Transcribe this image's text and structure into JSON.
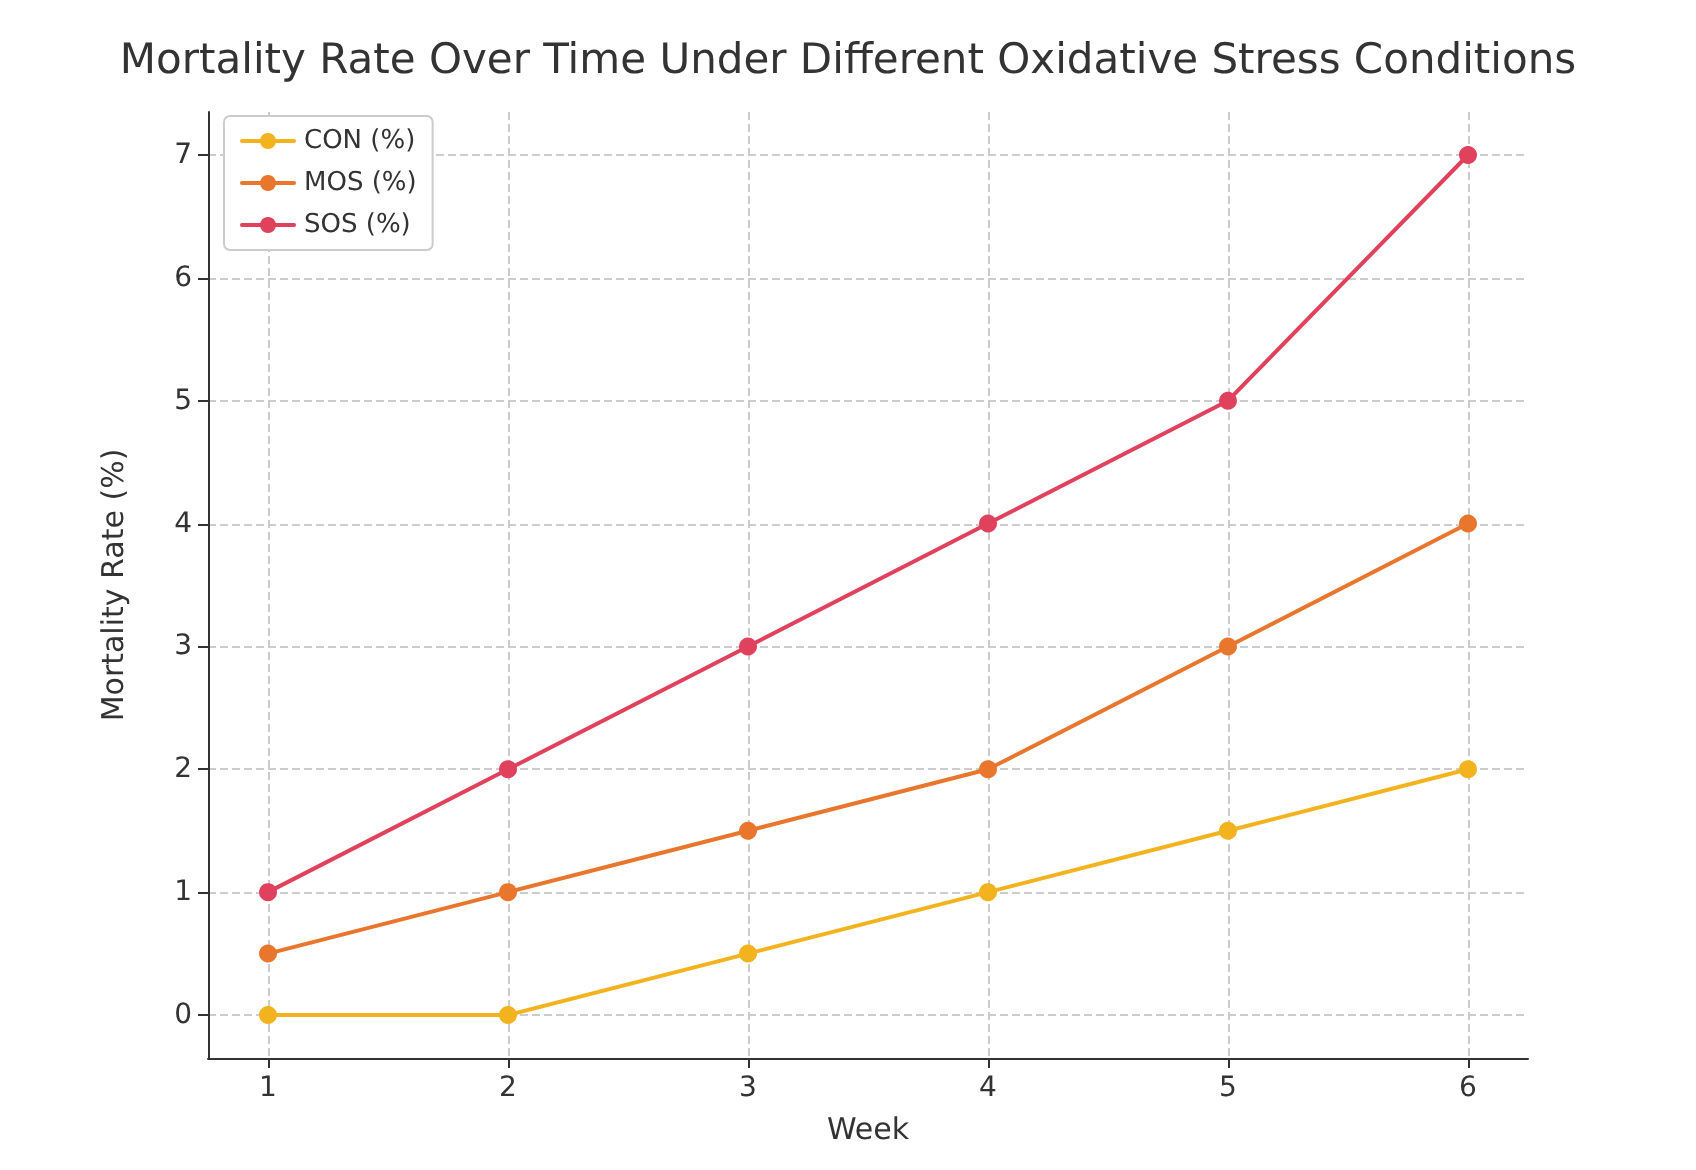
{
  "chart_data": {
    "type": "line",
    "title": "Mortality Rate Over Time Under Different Oxidative Stress Conditions",
    "xlabel": "Week",
    "ylabel": "Mortality Rate (%)",
    "x": [
      1,
      2,
      3,
      4,
      5,
      6
    ],
    "series": [
      {
        "name": "CON (%)",
        "color": "#f2b31f",
        "values": [
          0,
          0,
          0.5,
          1,
          1.5,
          2
        ]
      },
      {
        "name": "MOS (%)",
        "color": "#e8762d",
        "values": [
          0.5,
          1,
          1.5,
          2,
          3,
          4
        ]
      },
      {
        "name": "SOS (%)",
        "color": "#e0415c",
        "values": [
          1,
          2,
          3,
          4,
          5,
          7
        ]
      }
    ],
    "xlim": [
      0.75,
      6.25
    ],
    "xticks": [
      1,
      2,
      3,
      4,
      5,
      6
    ],
    "ylim": [
      -0.35,
      7.35
    ],
    "yticks": [
      0,
      1,
      2,
      3,
      4,
      5,
      6,
      7
    ],
    "grid": true,
    "legend": "top left",
    "marker": "circle",
    "line_style": "solid"
  }
}
